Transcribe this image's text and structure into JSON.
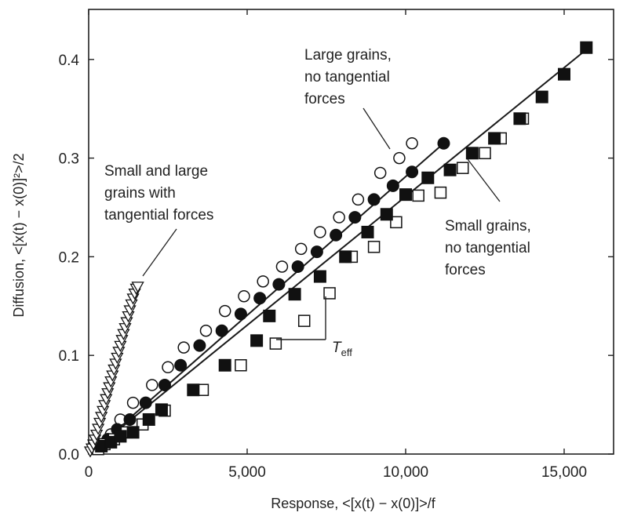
{
  "chart_data": {
    "type": "scatter",
    "title": "",
    "xlabel": "Response, <[x(t) − x(0)]>/f",
    "ylabel": "Diffusion, <[x(t) − x(0)]²>/2",
    "xlim": [
      0,
      17500
    ],
    "ylim": [
      0,
      0.45
    ],
    "x_ticks": [
      "0",
      "5,000",
      "10,000",
      "15,000"
    ],
    "y_ticks": [
      "0.0",
      "0.1",
      "0.2",
      "0.3",
      "0.4"
    ],
    "grid": false,
    "annotations": {
      "large": [
        "Large grains,",
        "no tangential",
        "forces"
      ],
      "smalllarge": [
        "Small and large",
        "grains with",
        "tangential forces"
      ],
      "small": [
        "Small grains,",
        "no tangential",
        "forces"
      ],
      "teff_main": "T",
      "teff_sub": "eff"
    },
    "series": [
      {
        "marker": "open-circle",
        "x": [
          700,
          1000,
          1400,
          2000,
          2500,
          3000,
          3700,
          4300,
          4900,
          5500,
          6100,
          6700,
          7300,
          7900,
          8500,
          9200,
          9800,
          10200
        ],
        "y": [
          0.02,
          0.035,
          0.052,
          0.07,
          0.088,
          0.108,
          0.125,
          0.145,
          0.16,
          0.175,
          0.19,
          0.208,
          0.225,
          0.24,
          0.258,
          0.285,
          0.3,
          0.315
        ]
      },
      {
        "marker": "filled-circle",
        "x": [
          600,
          900,
          1300,
          1800,
          2400,
          2900,
          3500,
          4200,
          4800,
          5400,
          6000,
          6600,
          7200,
          7800,
          8400,
          9000,
          9600,
          10200,
          11200
        ],
        "y": [
          0.015,
          0.025,
          0.035,
          0.052,
          0.07,
          0.09,
          0.11,
          0.125,
          0.142,
          0.158,
          0.172,
          0.19,
          0.205,
          0.222,
          0.24,
          0.258,
          0.272,
          0.286,
          0.315
        ]
      },
      {
        "marker": "open-square",
        "x": [
          300,
          500,
          800,
          1200,
          1700,
          2400,
          3600,
          4800,
          5900,
          6800,
          7600,
          8300,
          9000,
          9700,
          10400,
          11100,
          11800,
          12500,
          13000,
          13700
        ],
        "y": [
          0.005,
          0.01,
          0.015,
          0.022,
          0.03,
          0.044,
          0.065,
          0.09,
          0.112,
          0.135,
          0.163,
          0.2,
          0.21,
          0.235,
          0.262,
          0.265,
          0.29,
          0.305,
          0.32,
          0.34
        ]
      },
      {
        "marker": "filled-square",
        "x": [
          400,
          700,
          1000,
          1400,
          1900,
          2300,
          3300,
          4300,
          5300,
          5700,
          6500,
          7300,
          8100,
          8800,
          9400,
          10000,
          10700,
          11400,
          12100,
          12800,
          13600,
          14300,
          15000,
          15700
        ],
        "y": [
          0.008,
          0.012,
          0.018,
          0.022,
          0.035,
          0.045,
          0.065,
          0.09,
          0.115,
          0.14,
          0.162,
          0.18,
          0.2,
          0.225,
          0.243,
          0.263,
          0.28,
          0.288,
          0.305,
          0.32,
          0.34,
          0.362,
          0.385,
          0.412
        ]
      },
      {
        "marker": "open-triangle",
        "x": [
          50,
          100,
          150,
          200,
          250,
          300,
          350,
          400,
          450,
          500,
          550,
          600,
          650,
          700,
          750,
          800,
          850,
          900,
          950,
          1000,
          1050,
          1100,
          1150,
          1200,
          1250,
          1300,
          1350,
          1400,
          1450,
          1500,
          1550
        ],
        "y": [
          0.003,
          0.006,
          0.01,
          0.015,
          0.02,
          0.026,
          0.032,
          0.038,
          0.044,
          0.05,
          0.056,
          0.062,
          0.068,
          0.074,
          0.08,
          0.086,
          0.092,
          0.098,
          0.104,
          0.11,
          0.116,
          0.122,
          0.128,
          0.134,
          0.14,
          0.146,
          0.152,
          0.158,
          0.163,
          0.168,
          0.17
        ]
      }
    ],
    "fit_lines": [
      {
        "x": [
          0,
          11200
        ],
        "y": [
          0,
          0.315
        ]
      },
      {
        "x": [
          0,
          15700
        ],
        "y": [
          0,
          0.41
        ]
      },
      {
        "x": [
          0,
          1600
        ],
        "y": [
          0,
          0.17
        ]
      }
    ]
  }
}
